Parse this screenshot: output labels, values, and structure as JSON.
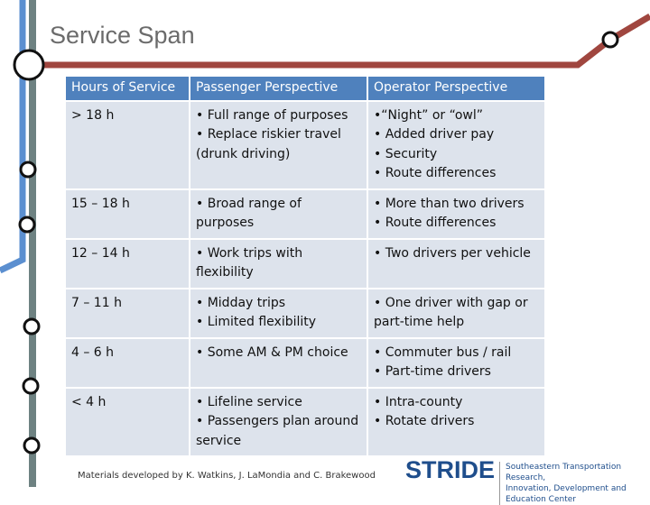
{
  "title": "Service Span",
  "table": {
    "header": [
      "Hours of Service",
      "Passenger Perspective",
      "Operator Perspective"
    ],
    "rows": [
      [
        [
          "> 18 h"
        ],
        [
          "• Full range of purposes",
          "• Replace riskier travel (drunk driving)"
        ],
        [
          "•“Night” or “owl”",
          "• Added driver pay",
          "• Security",
          "• Route differences"
        ]
      ],
      [
        [
          "15 – 18 h"
        ],
        [
          "• Broad range of purposes"
        ],
        [
          "• More than two drivers",
          "• Route differences"
        ]
      ],
      [
        [
          "12 – 14 h"
        ],
        [
          "• Work trips with flexibility"
        ],
        [
          "• Two drivers per vehicle"
        ]
      ],
      [
        [
          "7 – 11 h"
        ],
        [
          "• Midday trips",
          "• Limited flexibility"
        ],
        [
          "• One driver with gap or part-time help"
        ]
      ],
      [
        [
          "4 – 6 h"
        ],
        [
          "• Some AM & PM choice"
        ],
        [
          "• Commuter bus / rail",
          "• Part-time drivers"
        ]
      ],
      [
        [
          "< 4 h"
        ],
        [
          "• Lifeline service",
          "• Passengers plan around service"
        ],
        [
          "• Intra-county",
          "• Rotate drivers"
        ]
      ]
    ]
  },
  "footer": "Materials developed by K. Watkins, J. LaMondia and C. Brakewood",
  "logo": {
    "name": "STRIDE",
    "tagline": [
      "Southeastern Transportation Research,",
      "Innovation, Development and Education Center"
    ]
  }
}
